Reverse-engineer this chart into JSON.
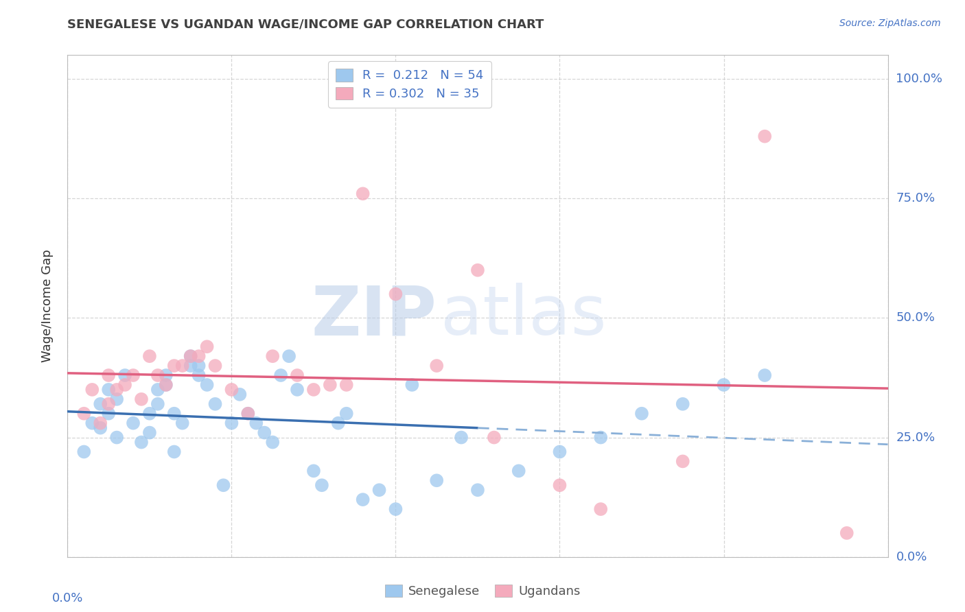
{
  "title": "SENEGALESE VS UGANDAN WAGE/INCOME GAP CORRELATION CHART",
  "source": "Source: ZipAtlas.com",
  "ylabel": "Wage/Income Gap",
  "yticks": [
    0.0,
    0.25,
    0.5,
    0.75,
    1.0
  ],
  "ytick_labels": [
    "0.0%",
    "25.0%",
    "50.0%",
    "75.0%",
    "100.0%"
  ],
  "legend1_label": "R =  0.212   N = 54",
  "legend2_label": "R = 0.302   N = 35",
  "color_blue": "#9EC8EE",
  "color_pink": "#F4AABC",
  "color_blue_line": "#3A6FB0",
  "color_pink_line": "#E06080",
  "color_blue_dashed": "#8AB0D8",
  "watermark_zip": "ZIP",
  "watermark_atlas": "atlas",
  "senegalese_x": [
    0.002,
    0.003,
    0.004,
    0.004,
    0.005,
    0.005,
    0.006,
    0.006,
    0.007,
    0.008,
    0.009,
    0.01,
    0.01,
    0.011,
    0.011,
    0.012,
    0.012,
    0.013,
    0.013,
    0.014,
    0.015,
    0.015,
    0.016,
    0.016,
    0.017,
    0.018,
    0.019,
    0.02,
    0.021,
    0.022,
    0.023,
    0.024,
    0.025,
    0.026,
    0.027,
    0.028,
    0.03,
    0.031,
    0.033,
    0.034,
    0.036,
    0.038,
    0.04,
    0.042,
    0.045,
    0.048,
    0.05,
    0.055,
    0.06,
    0.065,
    0.07,
    0.075,
    0.08,
    0.085
  ],
  "senegalese_y": [
    0.22,
    0.28,
    0.32,
    0.27,
    0.3,
    0.35,
    0.25,
    0.33,
    0.38,
    0.28,
    0.24,
    0.3,
    0.26,
    0.32,
    0.35,
    0.36,
    0.38,
    0.3,
    0.22,
    0.28,
    0.4,
    0.42,
    0.4,
    0.38,
    0.36,
    0.32,
    0.15,
    0.28,
    0.34,
    0.3,
    0.28,
    0.26,
    0.24,
    0.38,
    0.42,
    0.35,
    0.18,
    0.15,
    0.28,
    0.3,
    0.12,
    0.14,
    0.1,
    0.36,
    0.16,
    0.25,
    0.14,
    0.18,
    0.22,
    0.25,
    0.3,
    0.32,
    0.36,
    0.38
  ],
  "ugandan_x": [
    0.002,
    0.003,
    0.004,
    0.005,
    0.005,
    0.006,
    0.007,
    0.008,
    0.009,
    0.01,
    0.011,
    0.012,
    0.013,
    0.014,
    0.015,
    0.016,
    0.017,
    0.018,
    0.02,
    0.022,
    0.025,
    0.028,
    0.03,
    0.032,
    0.034,
    0.036,
    0.04,
    0.045,
    0.05,
    0.052,
    0.06,
    0.065,
    0.075,
    0.085,
    0.095
  ],
  "ugandan_y": [
    0.3,
    0.35,
    0.28,
    0.38,
    0.32,
    0.35,
    0.36,
    0.38,
    0.33,
    0.42,
    0.38,
    0.36,
    0.4,
    0.4,
    0.42,
    0.42,
    0.44,
    0.4,
    0.35,
    0.3,
    0.42,
    0.38,
    0.35,
    0.36,
    0.36,
    0.76,
    0.55,
    0.4,
    0.6,
    0.25,
    0.15,
    0.1,
    0.2,
    0.88,
    0.05
  ],
  "axis_color": "#4472C4",
  "title_color": "#404040",
  "grid_color": "#cccccc",
  "xlim": [
    0.0,
    0.1
  ],
  "ylim": [
    0.0,
    1.05
  ]
}
